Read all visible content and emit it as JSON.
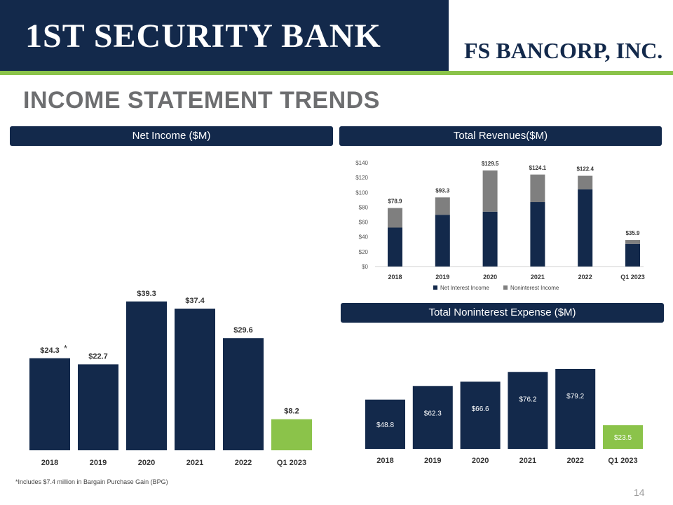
{
  "branding": {
    "bank_logo": "1ST SECURITY BANK",
    "corp_logo": "FS BANCORP, INC."
  },
  "slide": {
    "title": "INCOME STATEMENT TRENDS",
    "footnote": "*Includes $7.4 million in Bargain Purchase Gain (BPG)",
    "page_number": "14"
  },
  "colors": {
    "navy": "#13294b",
    "green": "#8bc34a",
    "gray": "#7f7f7f"
  },
  "chart_data": [
    {
      "id": "net-income",
      "type": "bar",
      "title": "Net Income ($M)",
      "categories": [
        "2018",
        "2019",
        "2020",
        "2021",
        "2022",
        "Q1 2023"
      ],
      "values": [
        24.3,
        22.7,
        39.3,
        37.4,
        29.6,
        8.2
      ],
      "labels": [
        "$24.3",
        "$22.7",
        "$39.3",
        "$37.4",
        "$29.6",
        "$8.2"
      ],
      "highlight": [
        false,
        false,
        false,
        false,
        false,
        true
      ],
      "annotation": "*",
      "annotation_index": 0,
      "ylim": [
        0,
        50
      ],
      "grid": false,
      "legend": "none"
    },
    {
      "id": "total-revenues",
      "type": "bar",
      "stacked": true,
      "title": "Total Revenues($M)",
      "categories": [
        "2018",
        "2019",
        "2020",
        "2021",
        "2022",
        "Q1 2023"
      ],
      "series": [
        {
          "name": "Net Interest Income",
          "color": "#13294b",
          "values": [
            52.5,
            69.8,
            74.0,
            87.0,
            104.0,
            30.5
          ]
        },
        {
          "name": "Noninterest Income",
          "color": "#7f7f7f",
          "values": [
            26.4,
            23.5,
            55.5,
            37.1,
            18.4,
            5.4
          ]
        }
      ],
      "totals": [
        "$78.9",
        "$93.3",
        "$129.5",
        "$124.1",
        "$122.4",
        "$35.9"
      ],
      "yticks": [
        "$0",
        "$20",
        "$40",
        "$60",
        "$80",
        "$100",
        "$120",
        "$140"
      ],
      "ylim": [
        0,
        140
      ],
      "grid": false,
      "legend": "bottom"
    },
    {
      "id": "noninterest-expense",
      "type": "bar",
      "title": "Total Noninterest Expense ($M)",
      "categories": [
        "2018",
        "2019",
        "2020",
        "2021",
        "2022",
        "Q1 2023"
      ],
      "values": [
        48.8,
        62.3,
        66.6,
        76.2,
        79.2,
        23.5
      ],
      "labels": [
        "$48.8",
        "$62.3",
        "$66.6",
        "$76.2",
        "$79.2",
        "$23.5"
      ],
      "highlight": [
        false,
        false,
        false,
        false,
        false,
        true
      ],
      "ylim": [
        0,
        80
      ],
      "grid": false,
      "legend": "none"
    }
  ]
}
